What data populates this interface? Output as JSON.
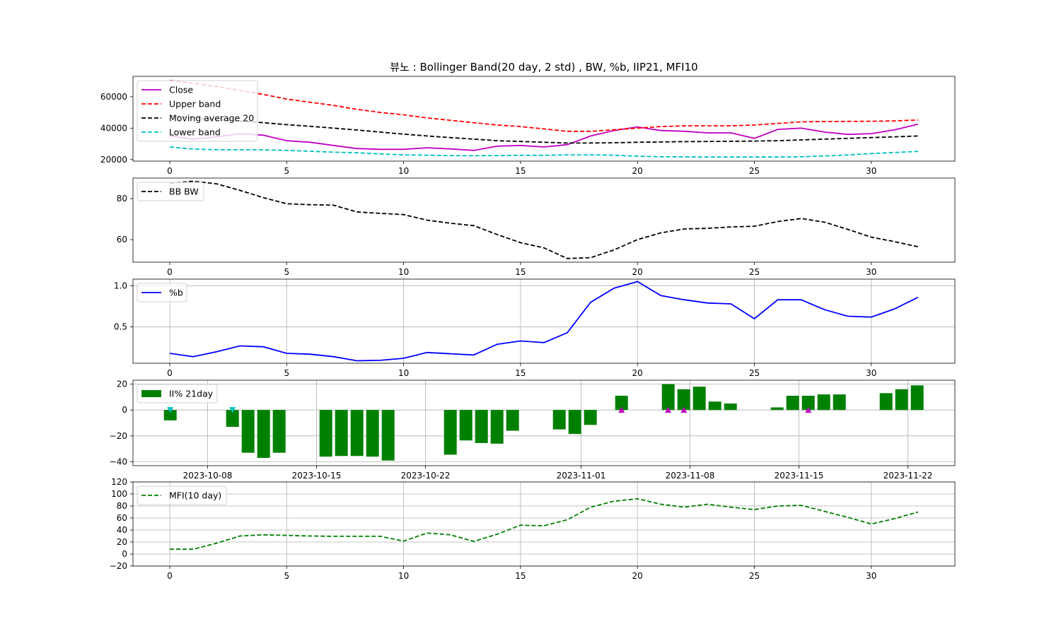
{
  "chart_data": {
    "title": "뷰노 : Bollinger Band(20 day, 2 std) , BW, %b, IIP21, MFI10",
    "x_index": [
      0,
      1,
      2,
      3,
      4,
      5,
      6,
      7,
      8,
      9,
      10,
      11,
      12,
      13,
      14,
      15,
      16,
      17,
      18,
      19,
      20,
      21,
      22,
      23,
      24,
      25,
      26,
      27,
      28,
      29,
      30,
      31,
      32
    ],
    "x_ticks": [
      0,
      5,
      10,
      15,
      20,
      25,
      30
    ],
    "colors": {
      "close": "#c000c0",
      "upper": "#ff0000",
      "ma": "#000000",
      "lower": "#00bfbf",
      "bw": "#000000",
      "pb": "#0000ff",
      "iip": "#008000",
      "buy": "#c000c0",
      "sell": "#00bfbf",
      "mfi": "#008000",
      "grid": "#b0b0b0"
    },
    "panels": [
      {
        "id": "bollinger",
        "type": "line",
        "ylim": [
          19000,
          73000
        ],
        "y_ticks": [
          20000,
          40000,
          60000
        ],
        "y_tick_labels": [
          "20000",
          "40000",
          "60000"
        ],
        "grid": false,
        "legend": "upper-left",
        "series": [
          {
            "name": "Close",
            "style": "solid",
            "color_key": "close",
            "values": [
              35000,
              33000,
              34500,
              36500,
              35500,
              32000,
              31000,
              29000,
              27000,
              26500,
              26500,
              27500,
              26800,
              25800,
              28500,
              29000,
              28000,
              29500,
              35000,
              38500,
              40800,
              38500,
              38000,
              37000,
              37000,
              33500,
              39200,
              40000,
              37500,
              36000,
              36500,
              39000,
              42500
            ]
          },
          {
            "name": "Upper band",
            "style": "dashed",
            "color_key": "upper",
            "values": [
              70500,
              68500,
              66500,
              64000,
              61500,
              58500,
              56500,
              54500,
              52000,
              50000,
              48500,
              46500,
              45000,
              43500,
              42000,
              41000,
              39500,
              38000,
              38000,
              39000,
              40000,
              41000,
              41500,
              41500,
              41500,
              42000,
              43000,
              44000,
              44200,
              44300,
              44400,
              44600,
              45200
            ]
          },
          {
            "name": "Moving average 20",
            "style": "dashed",
            "color_key": "ma",
            "values": [
              48000,
              46500,
              45500,
              44500,
              43500,
              42200,
              41200,
              40000,
              38800,
              37500,
              36200,
              35000,
              34000,
              33000,
              32000,
              31500,
              31000,
              30500,
              30500,
              30700,
              31000,
              31200,
              31400,
              31500,
              31600,
              31800,
              32000,
              32500,
              33000,
              33500,
              34000,
              34500,
              35000
            ]
          },
          {
            "name": "Lower band",
            "style": "dashed",
            "color_key": "lower",
            "values": [
              28000,
              26700,
              26300,
              26200,
              26200,
              25800,
              25300,
              24700,
              24300,
              23600,
              23000,
              22800,
              22500,
              22400,
              22500,
              22700,
              22700,
              23000,
              23000,
              22800,
              22100,
              21800,
              21700,
              21600,
              21600,
              21600,
              21600,
              21800,
              22300,
              22900,
              23800,
              24500,
              25200
            ]
          }
        ]
      },
      {
        "id": "bandwidth",
        "type": "line",
        "ylim": [
          49,
          90
        ],
        "y_ticks": [
          60,
          80
        ],
        "y_tick_labels": [
          "60",
          "80"
        ],
        "grid": false,
        "legend": "upper-left",
        "series": [
          {
            "name": "BB BW",
            "style": "dashed",
            "color_key": "bw",
            "values": [
              87.5,
              88.5,
              87.2,
              84,
              80.5,
              77.5,
              77,
              76.8,
              73.5,
              72.8,
              72.2,
              69.5,
              68,
              66.8,
              62.5,
              58.5,
              56,
              50.8,
              51.2,
              55,
              60,
              63.3,
              65.2,
              65.5,
              66.2,
              66.5,
              68.8,
              70.3,
              68.5,
              65,
              61.2,
              59,
              56.5
            ]
          }
        ]
      },
      {
        "id": "percent_b",
        "type": "line",
        "ylim": [
          0.06,
          1.08
        ],
        "y_ticks": [
          0.5,
          1.0
        ],
        "y_tick_labels": [
          "0.5",
          "1.0"
        ],
        "grid": true,
        "legend": "upper-left",
        "series": [
          {
            "name": "%b",
            "style": "solid",
            "color_key": "pb",
            "values": [
              0.18,
              0.14,
              0.2,
              0.27,
              0.26,
              0.18,
              0.17,
              0.14,
              0.09,
              0.095,
              0.12,
              0.19,
              0.175,
              0.16,
              0.29,
              0.33,
              0.31,
              0.43,
              0.8,
              0.97,
              1.05,
              0.88,
              0.83,
              0.79,
              0.78,
              0.6,
              0.83,
              0.83,
              0.71,
              0.63,
              0.62,
              0.72,
              0.86
            ]
          }
        ]
      },
      {
        "id": "iip21",
        "type": "bar",
        "ylim": [
          -43,
          23
        ],
        "y_ticks": [
          -40,
          -20,
          0,
          20
        ],
        "y_tick_labels": [
          "−40",
          "−20",
          "0",
          "20"
        ],
        "grid": true,
        "legend": "upper-left",
        "date_ticks": [
          {
            "label": "2023-10-08",
            "day": 8
          },
          {
            "label": "2023-10-15",
            "day": 15
          },
          {
            "label": "2023-10-22",
            "day": 22
          },
          {
            "label": "2023-11-01",
            "day": 32
          },
          {
            "label": "2023-11-08",
            "day": 39
          },
          {
            "label": "2023-11-15",
            "day": 46
          },
          {
            "label": "2023-11-22",
            "day": 53
          }
        ],
        "series_name": "II% 21day",
        "bars": [
          {
            "day": 5.6,
            "value": -8
          },
          {
            "day": 9.6,
            "value": -13
          },
          {
            "day": 10.6,
            "value": -33
          },
          {
            "day": 11.6,
            "value": -37
          },
          {
            "day": 12.6,
            "value": -33
          },
          {
            "day": 15.6,
            "value": -36
          },
          {
            "day": 16.6,
            "value": -35.5
          },
          {
            "day": 17.6,
            "value": -35.5
          },
          {
            "day": 18.6,
            "value": -36
          },
          {
            "day": 19.6,
            "value": -39
          },
          {
            "day": 23.6,
            "value": -34.5
          },
          {
            "day": 24.6,
            "value": -23.5
          },
          {
            "day": 25.6,
            "value": -25.5
          },
          {
            "day": 26.6,
            "value": -26
          },
          {
            "day": 27.6,
            "value": -16
          },
          {
            "day": 30.6,
            "value": -15
          },
          {
            "day": 31.6,
            "value": -18.5
          },
          {
            "day": 32.6,
            "value": -11.5
          },
          {
            "day": 34.6,
            "value": 11
          },
          {
            "day": 37.6,
            "value": 20
          },
          {
            "day": 38.6,
            "value": 16
          },
          {
            "day": 39.6,
            "value": 18
          },
          {
            "day": 40.6,
            "value": 6.5
          },
          {
            "day": 41.6,
            "value": 5
          },
          {
            "day": 44.6,
            "value": 2
          },
          {
            "day": 45.6,
            "value": 11
          },
          {
            "day": 46.6,
            "value": 11
          },
          {
            "day": 47.6,
            "value": 12
          },
          {
            "day": 48.6,
            "value": 12
          },
          {
            "day": 51.6,
            "value": 13
          },
          {
            "day": 52.6,
            "value": 16
          },
          {
            "day": 53.6,
            "value": 19
          }
        ],
        "buy_markers": [
          34.6,
          37.6,
          38.6,
          46.6
        ],
        "sell_markers": [
          5.6,
          9.6
        ]
      },
      {
        "id": "mfi",
        "type": "line",
        "ylim": [
          -20,
          120
        ],
        "y_ticks": [
          -20,
          0,
          20,
          40,
          60,
          80,
          100,
          120
        ],
        "y_tick_labels": [
          "−20",
          "0",
          "20",
          "40",
          "60",
          "80",
          "100",
          "120"
        ],
        "grid": true,
        "legend": "upper-left",
        "series": [
          {
            "name": "MFI(10 day)",
            "style": "dashed",
            "color_key": "mfi",
            "values": [
              8,
              8,
              18,
              30,
              32,
              31,
              30,
              29.5,
              29.5,
              29.5,
              21.5,
              35,
              32,
              21,
              33,
              48,
              47,
              57,
              78,
              88,
              92,
              83,
              78,
              83,
              78,
              74,
              80,
              81,
              71,
              61,
              50,
              59,
              70
            ]
          }
        ]
      }
    ]
  }
}
